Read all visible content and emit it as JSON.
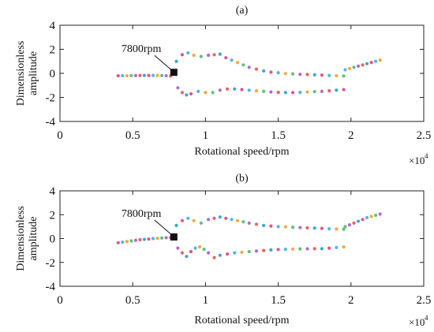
{
  "chart_data": [
    {
      "type": "scatter",
      "panel_label": "(a)",
      "xlabel": "Rotational speed/rpm",
      "ylabel": [
        "Dimensionless",
        "amplitude"
      ],
      "x_exponent_label": "×10",
      "x_exponent_power": "4",
      "xlim": [
        0,
        2.5
      ],
      "ylim": [
        -4,
        4
      ],
      "xticks": [
        "0",
        "0.5",
        "1",
        "1.5",
        "2",
        "2.5"
      ],
      "yticks": [
        "4",
        "2",
        "0",
        "-2",
        "-4"
      ],
      "grid": false,
      "annotation": {
        "text": "7800rpm",
        "x": 0.78,
        "y": 0.05
      },
      "series": [
        {
          "x": [
            0.4,
            0.43,
            0.46,
            0.49,
            0.52,
            0.55,
            0.58,
            0.61,
            0.64,
            0.67,
            0.7,
            0.73,
            0.76
          ],
          "y": [
            -0.2,
            -0.2,
            -0.2,
            -0.19,
            -0.18,
            -0.18,
            -0.17,
            -0.17,
            -0.17,
            -0.17,
            -0.18,
            -0.2,
            -0.22
          ]
        },
        {
          "x": [
            0.8,
            0.84,
            0.88,
            0.92,
            0.97,
            1.02,
            1.06,
            1.1,
            1.14,
            1.18,
            1.22,
            1.26,
            1.3,
            1.35,
            1.4,
            1.45,
            1.5,
            1.55,
            1.6,
            1.65,
            1.7,
            1.75,
            1.8,
            1.85,
            1.9,
            1.95
          ],
          "y": [
            1.0,
            1.55,
            1.7,
            1.5,
            1.4,
            1.5,
            1.55,
            1.6,
            1.3,
            1.1,
            0.9,
            0.7,
            0.5,
            0.35,
            0.2,
            0.1,
            0.05,
            -0.02,
            -0.05,
            -0.08,
            -0.1,
            -0.12,
            -0.15,
            -0.18,
            -0.2,
            -0.22
          ]
        },
        {
          "x": [
            0.81,
            0.84,
            0.87,
            0.9,
            0.95,
            1.0,
            1.05,
            1.1,
            1.15,
            1.2,
            1.25,
            1.3,
            1.35,
            1.4,
            1.45,
            1.5,
            1.55,
            1.6,
            1.65,
            1.7,
            1.75,
            1.8,
            1.85,
            1.9,
            1.95
          ],
          "y": [
            -1.2,
            -1.6,
            -1.8,
            -1.7,
            -1.5,
            -1.6,
            -1.6,
            -1.4,
            -1.3,
            -1.3,
            -1.35,
            -1.4,
            -1.45,
            -1.5,
            -1.55,
            -1.58,
            -1.6,
            -1.6,
            -1.58,
            -1.55,
            -1.52,
            -1.5,
            -1.45,
            -1.4,
            -1.35
          ]
        },
        {
          "x": [
            1.96,
            1.99,
            2.02,
            2.05,
            2.08,
            2.11,
            2.14,
            2.17,
            2.2
          ],
          "y": [
            0.3,
            0.4,
            0.5,
            0.6,
            0.7,
            0.8,
            0.9,
            1.0,
            1.1
          ]
        }
      ]
    },
    {
      "type": "scatter",
      "panel_label": "(b)",
      "xlabel": "Rotational speed/rpm",
      "ylabel": [
        "Dimensionless",
        "amplitude"
      ],
      "x_exponent_label": "×10",
      "x_exponent_power": "4",
      "xlim": [
        0,
        2.5
      ],
      "ylim": [
        -4,
        4
      ],
      "xticks": [
        "0",
        "0.5",
        "1",
        "1.5",
        "2",
        "2.5"
      ],
      "yticks": [
        "4",
        "2",
        "0",
        "-2",
        "-4"
      ],
      "grid": false,
      "annotation": {
        "text": "7800rpm",
        "x": 0.78,
        "y": 0.1
      },
      "series": [
        {
          "x": [
            0.4,
            0.43,
            0.46,
            0.49,
            0.52,
            0.55,
            0.58,
            0.61,
            0.64,
            0.67,
            0.7,
            0.73,
            0.76
          ],
          "y": [
            -0.35,
            -0.3,
            -0.25,
            -0.2,
            -0.15,
            -0.1,
            -0.07,
            -0.04,
            0.0,
            0.02,
            0.05,
            0.07,
            0.08
          ]
        },
        {
          "x": [
            0.8,
            0.84,
            0.88,
            0.92,
            0.97,
            1.02,
            1.06,
            1.1,
            1.14,
            1.18,
            1.22,
            1.26,
            1.3,
            1.35,
            1.4,
            1.45,
            1.5,
            1.55,
            1.6,
            1.65,
            1.7,
            1.75,
            1.8,
            1.85,
            1.9,
            1.95
          ],
          "y": [
            1.1,
            1.5,
            1.7,
            1.5,
            1.3,
            1.6,
            1.7,
            1.8,
            1.7,
            1.6,
            1.5,
            1.4,
            1.3,
            1.2,
            1.1,
            1.05,
            1.0,
            0.98,
            0.95,
            0.92,
            0.9,
            0.88,
            0.85,
            0.82,
            0.8,
            0.78
          ]
        },
        {
          "x": [
            0.81,
            0.84,
            0.87,
            0.9,
            0.93,
            0.96,
            0.99,
            1.02,
            1.06,
            1.1,
            1.15,
            1.2,
            1.25,
            1.3,
            1.35,
            1.4,
            1.45,
            1.5,
            1.55,
            1.6,
            1.65,
            1.7,
            1.75,
            1.8,
            1.85,
            1.9,
            1.95
          ],
          "y": [
            -0.8,
            -1.2,
            -1.5,
            -1.1,
            -0.8,
            -0.7,
            -0.9,
            -1.2,
            -1.6,
            -1.4,
            -1.3,
            -1.2,
            -1.15,
            -1.1,
            -1.05,
            -1.0,
            -0.95,
            -0.92,
            -0.9,
            -0.88,
            -0.87,
            -0.86,
            -0.85,
            -0.85,
            -0.8,
            -0.75,
            -0.7
          ]
        },
        {
          "x": [
            1.96,
            1.99,
            2.02,
            2.05,
            2.08,
            2.11,
            2.14,
            2.17,
            2.2
          ],
          "y": [
            1.0,
            1.15,
            1.3,
            1.45,
            1.6,
            1.75,
            1.85,
            1.95,
            2.05
          ]
        }
      ]
    }
  ],
  "palette": [
    "#e8508a",
    "#4db8e8",
    "#f2a93b",
    "#5ec27a",
    "#b06ad9",
    "#f25f5c",
    "#3aa6d6"
  ]
}
